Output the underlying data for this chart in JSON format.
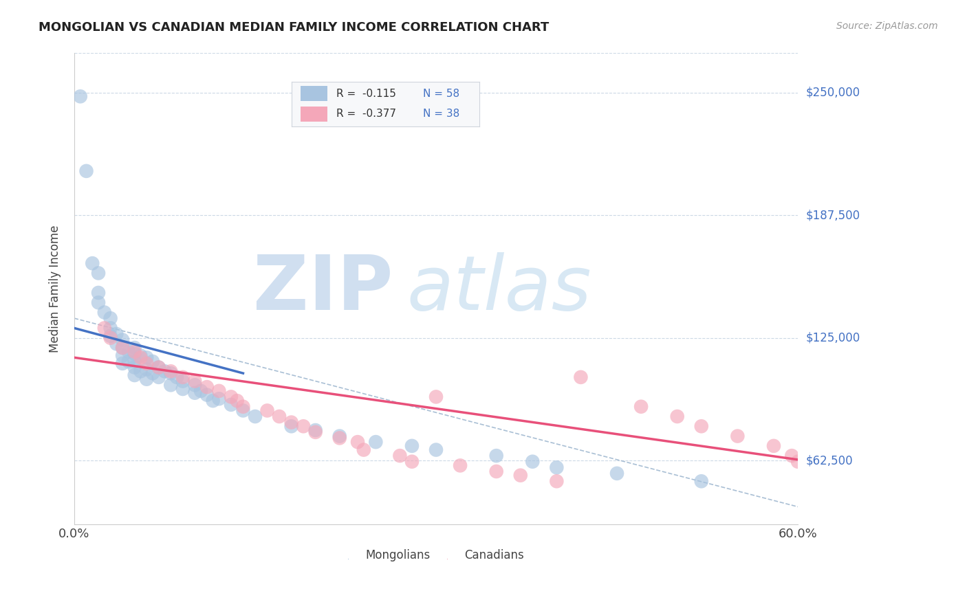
{
  "title": "MONGOLIAN VS CANADIAN MEDIAN FAMILY INCOME CORRELATION CHART",
  "source": "Source: ZipAtlas.com",
  "ylabel": "Median Family Income",
  "y_ticks": [
    62500,
    125000,
    187500,
    250000
  ],
  "y_tick_labels": [
    "$62,500",
    "$125,000",
    "$187,500",
    "$250,000"
  ],
  "xlim": [
    0.0,
    0.6
  ],
  "ylim": [
    30000,
    270000
  ],
  "legend_text1": "R =  -0.115   N = 58",
  "legend_text2": "R =  -0.377   N = 38",
  "color_mongolian": "#a8c4e0",
  "color_canadian": "#f4a7b9",
  "line_color_mongolian": "#4472c4",
  "line_color_canadian": "#e8507a",
  "dashed_line_color": "#a0b8d0",
  "background_color": "#ffffff",
  "mongo_x": [
    0.005,
    0.01,
    0.015,
    0.02,
    0.02,
    0.02,
    0.025,
    0.03,
    0.03,
    0.03,
    0.035,
    0.035,
    0.04,
    0.04,
    0.04,
    0.04,
    0.045,
    0.045,
    0.05,
    0.05,
    0.05,
    0.05,
    0.05,
    0.055,
    0.055,
    0.06,
    0.06,
    0.06,
    0.065,
    0.065,
    0.07,
    0.07,
    0.075,
    0.08,
    0.08,
    0.085,
    0.09,
    0.09,
    0.1,
    0.1,
    0.105,
    0.11,
    0.115,
    0.12,
    0.13,
    0.14,
    0.15,
    0.18,
    0.2,
    0.22,
    0.25,
    0.28,
    0.3,
    0.35,
    0.38,
    0.4,
    0.45,
    0.52
  ],
  "mongo_y": [
    248000,
    210000,
    163000,
    158000,
    148000,
    143000,
    138000,
    135000,
    130000,
    126000,
    127000,
    122000,
    124000,
    120000,
    116000,
    112000,
    118000,
    113000,
    120000,
    117000,
    113000,
    110000,
    106000,
    116000,
    108000,
    115000,
    109000,
    104000,
    113000,
    107000,
    110000,
    105000,
    108000,
    107000,
    101000,
    105000,
    103000,
    99000,
    101000,
    97000,
    98000,
    96000,
    93000,
    94000,
    91000,
    88000,
    85000,
    80000,
    78000,
    75000,
    72000,
    70000,
    68000,
    65000,
    62000,
    59000,
    56000,
    52000
  ],
  "canada_x": [
    0.025,
    0.03,
    0.04,
    0.05,
    0.055,
    0.06,
    0.07,
    0.08,
    0.09,
    0.1,
    0.11,
    0.12,
    0.13,
    0.135,
    0.14,
    0.16,
    0.17,
    0.18,
    0.19,
    0.2,
    0.22,
    0.235,
    0.24,
    0.27,
    0.28,
    0.3,
    0.32,
    0.35,
    0.37,
    0.4,
    0.42,
    0.47,
    0.5,
    0.52,
    0.55,
    0.58,
    0.595,
    0.6
  ],
  "canada_y": [
    130000,
    125000,
    120000,
    118000,
    115000,
    112000,
    110000,
    108000,
    105000,
    103000,
    100000,
    98000,
    95000,
    93000,
    90000,
    88000,
    85000,
    82000,
    80000,
    77000,
    74000,
    72000,
    68000,
    65000,
    62000,
    95000,
    60000,
    57000,
    55000,
    52000,
    105000,
    90000,
    85000,
    80000,
    75000,
    70000,
    65000,
    62000
  ]
}
